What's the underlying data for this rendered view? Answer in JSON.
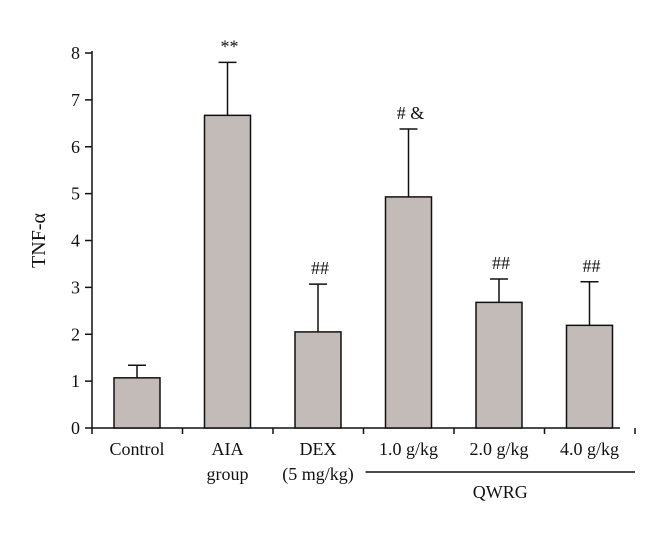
{
  "chart_data": {
    "type": "bar",
    "ylabel": "TNF-α",
    "ylim": [
      0,
      8
    ],
    "yticks": [
      0,
      1,
      2,
      3,
      4,
      5,
      6,
      7,
      8
    ],
    "categories": [
      [
        "Control"
      ],
      [
        "AIA",
        "group"
      ],
      [
        "DEX",
        "(5 mg/kg)"
      ],
      [
        "1.0 g/kg"
      ],
      [
        "2.0 g/kg"
      ],
      [
        "4.0 g/kg"
      ]
    ],
    "values": [
      1.07,
      6.67,
      2.05,
      4.93,
      2.68,
      2.19
    ],
    "errors": [
      0.27,
      1.13,
      1.02,
      1.45,
      0.5,
      0.93
    ],
    "annotations": [
      "",
      "**",
      "##",
      "# &",
      "##",
      "##"
    ],
    "group_label": {
      "text": "QWRG",
      "categories": [
        3,
        4,
        5
      ]
    },
    "bar_color": "#c3bbb7",
    "grid": false
  }
}
